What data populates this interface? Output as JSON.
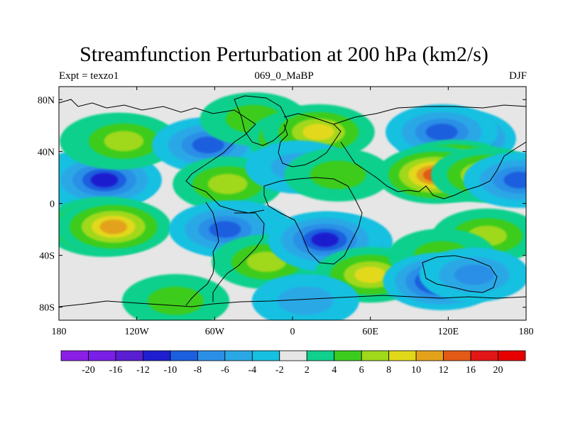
{
  "title": "Streamfunction Perturbation at 200 hPa (km2/s)",
  "subtitle_left": "Expt = texzo1",
  "subtitle_center": "069_0_MaBP",
  "subtitle_right": "DJF",
  "map": {
    "projection": "cylindrical equidistant",
    "lon_range": [
      -180,
      180
    ],
    "lat_range": [
      -90,
      90
    ],
    "x_ticks": [
      {
        "lon": -180,
        "label": "180"
      },
      {
        "lon": -120,
        "label": "120W"
      },
      {
        "lon": -60,
        "label": "60W"
      },
      {
        "lon": 0,
        "label": "0"
      },
      {
        "lon": 60,
        "label": "60E"
      },
      {
        "lon": 120,
        "label": "120E"
      },
      {
        "lon": 180,
        "label": "180"
      }
    ],
    "y_ticks": [
      {
        "lat": 80,
        "label": "80N"
      },
      {
        "lat": 40,
        "label": "40N"
      },
      {
        "lat": 0,
        "label": "0"
      },
      {
        "lat": -40,
        "label": "40S"
      },
      {
        "lat": -80,
        "label": "80S"
      }
    ]
  },
  "colorbar": {
    "labels": [
      "-20",
      "-16",
      "-12",
      "-10",
      "-8",
      "-6",
      "-4",
      "-2",
      "2",
      "4",
      "6",
      "8",
      "10",
      "12",
      "16",
      "20"
    ],
    "colors": [
      "#8b1fe6",
      "#7a1fe6",
      "#5a1ed2",
      "#1f1ecf",
      "#1c5fde",
      "#2b8fe6",
      "#2aa8e6",
      "#16c0e0",
      "#e6e6e6",
      "#0fd08c",
      "#3ccc1e",
      "#a0d81a",
      "#e2d81a",
      "#e4a21a",
      "#e25a16",
      "#e21616",
      "#e60000"
    ]
  },
  "field": {
    "cells": [
      {
        "lon": -153,
        "lat": 18,
        "value": -20
      },
      {
        "lon": -150,
        "lat": 18,
        "value": -16
      },
      {
        "lon": -145,
        "lat": 18,
        "value": -10
      },
      {
        "lon": -135,
        "lat": 48,
        "value": 10
      },
      {
        "lon": -130,
        "lat": 48,
        "value": 6
      },
      {
        "lon": -145,
        "lat": -18,
        "value": 16
      },
      {
        "lon": -138,
        "lat": -18,
        "value": 10
      },
      {
        "lon": -65,
        "lat": 45,
        "value": -8
      },
      {
        "lon": -50,
        "lat": 15,
        "value": 6
      },
      {
        "lon": -45,
        "lat": -20,
        "value": -12
      },
      {
        "lon": -52,
        "lat": -20,
        "value": -8
      },
      {
        "lon": -20,
        "lat": -45,
        "value": 6
      },
      {
        "lon": -30,
        "lat": 65,
        "value": 4
      },
      {
        "lon": 10,
        "lat": 50,
        "value": 12
      },
      {
        "lon": 20,
        "lat": 55,
        "value": 8
      },
      {
        "lon": 5,
        "lat": 28,
        "value": -4
      },
      {
        "lon": 35,
        "lat": 22,
        "value": 4
      },
      {
        "lon": 30,
        "lat": -30,
        "value": -16
      },
      {
        "lon": 25,
        "lat": -28,
        "value": -10
      },
      {
        "lon": 60,
        "lat": -55,
        "value": 8
      },
      {
        "lon": 125,
        "lat": 50,
        "value": -16
      },
      {
        "lon": 115,
        "lat": 55,
        "value": -8
      },
      {
        "lon": 125,
        "lat": 25,
        "value": 20
      },
      {
        "lon": 110,
        "lat": 22,
        "value": 12
      },
      {
        "lon": 150,
        "lat": 22,
        "value": 8
      },
      {
        "lon": 150,
        "lat": -25,
        "value": 6
      },
      {
        "lon": 115,
        "lat": -40,
        "value": 4
      },
      {
        "lon": 115,
        "lat": -60,
        "value": -12
      },
      {
        "lon": 140,
        "lat": -55,
        "value": -6
      },
      {
        "lon": 175,
        "lat": 18,
        "value": -8
      },
      {
        "lon": -90,
        "lat": -75,
        "value": 4
      },
      {
        "lon": 10,
        "lat": -75,
        "value": -4
      }
    ]
  }
}
